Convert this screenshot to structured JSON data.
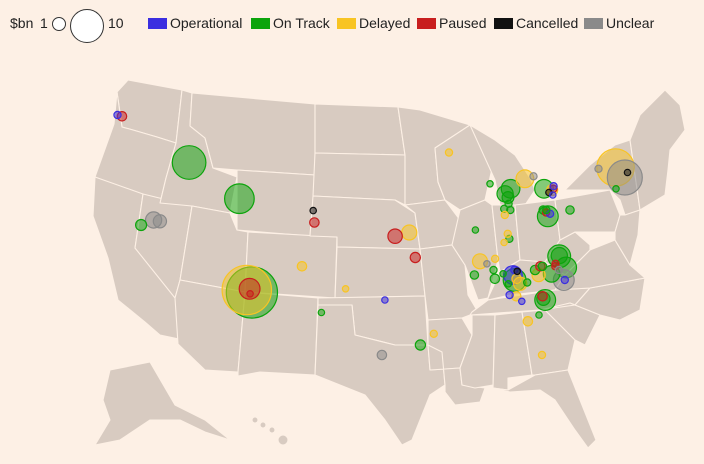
{
  "legend": {
    "unit_label": "$bn",
    "size_min": "1",
    "size_max": "10",
    "statuses": [
      {
        "key": "operational",
        "label": "Operational",
        "color": "#3a2ee0"
      },
      {
        "key": "on_track",
        "label": "On Track",
        "color": "#0ca40c"
      },
      {
        "key": "delayed",
        "label": "Delayed",
        "color": "#f8c423"
      },
      {
        "key": "paused",
        "label": "Paused",
        "color": "#c81e1e"
      },
      {
        "key": "cancelled",
        "label": "Cancelled",
        "color": "#111111"
      },
      {
        "key": "unclear",
        "label": "Unclear",
        "color": "#8a8a8a"
      }
    ]
  },
  "projects": [
    {
      "lon": -122.4,
      "lat": 47.4,
      "status": "operational",
      "value": 0.3
    },
    {
      "lon": -122.0,
      "lat": 47.3,
      "status": "paused",
      "value": 0.5
    },
    {
      "lon": -116.4,
      "lat": 43.6,
      "status": "on_track",
      "value": 6.5
    },
    {
      "lon": -121.9,
      "lat": 38.6,
      "status": "on_track",
      "value": 0.7
    },
    {
      "lon": -120.6,
      "lat": 39.0,
      "status": "unclear",
      "value": 1.5
    },
    {
      "lon": -120.0,
      "lat": 38.9,
      "status": "unclear",
      "value": 1.0
    },
    {
      "lon": -112.0,
      "lat": 40.7,
      "status": "on_track",
      "value": 5.0
    },
    {
      "lon": -112.2,
      "lat": 33.4,
      "status": "delayed",
      "value": 14.0
    },
    {
      "lon": -111.7,
      "lat": 33.2,
      "status": "on_track",
      "value": 15.0
    },
    {
      "lon": -111.9,
      "lat": 33.5,
      "status": "paused",
      "value": 2.5
    },
    {
      "lon": -111.9,
      "lat": 33.1,
      "status": "paused",
      "value": 0.15
    },
    {
      "lon": -106.4,
      "lat": 35.3,
      "status": "delayed",
      "value": 0.5
    },
    {
      "lon": -104.95,
      "lat": 39.75,
      "status": "cancelled",
      "value": 0.2
    },
    {
      "lon": -104.9,
      "lat": 38.8,
      "status": "paused",
      "value": 0.5
    },
    {
      "lon": -104.7,
      "lat": 31.6,
      "status": "on_track",
      "value": 0.2
    },
    {
      "lon": -102.1,
      "lat": 33.5,
      "status": "delayed",
      "value": 0.2
    },
    {
      "lon": -98.1,
      "lat": 32.6,
      "status": "operational",
      "value": 0.2
    },
    {
      "lon": -98.5,
      "lat": 28.2,
      "status": "unclear",
      "value": 0.5
    },
    {
      "lon": -94.4,
      "lat": 29.0,
      "status": "on_track",
      "value": 0.6
    },
    {
      "lon": -93.0,
      "lat": 29.9,
      "status": "delayed",
      "value": 0.3
    },
    {
      "lon": -97.0,
      "lat": 37.7,
      "status": "paused",
      "value": 1.2
    },
    {
      "lon": -95.6,
      "lat": 38.0,
      "status": "delayed",
      "value": 1.3
    },
    {
      "lon": -95.0,
      "lat": 36.0,
      "status": "paused",
      "value": 0.6
    },
    {
      "lon": -91.9,
      "lat": 44.4,
      "status": "delayed",
      "value": 0.3
    },
    {
      "lon": -87.9,
      "lat": 41.9,
      "status": "on_track",
      "value": 0.2
    },
    {
      "lon": -86.4,
      "lat": 41.1,
      "status": "on_track",
      "value": 1.5
    },
    {
      "lon": -85.9,
      "lat": 41.5,
      "status": "on_track",
      "value": 2.0
    },
    {
      "lon": -86.1,
      "lat": 40.8,
      "status": "on_track",
      "value": 0.8
    },
    {
      "lon": -86.4,
      "lat": 39.9,
      "status": "on_track",
      "value": 0.3
    },
    {
      "lon": -86.0,
      "lat": 40.3,
      "status": "on_track",
      "value": 0.3
    },
    {
      "lon": -85.8,
      "lat": 39.8,
      "status": "on_track",
      "value": 0.3
    },
    {
      "lon": -86.3,
      "lat": 39.4,
      "status": "delayed",
      "value": 0.3
    },
    {
      "lon": -84.6,
      "lat": 42.3,
      "status": "delayed",
      "value": 1.8
    },
    {
      "lon": -83.8,
      "lat": 42.5,
      "status": "unclear",
      "value": 0.3
    },
    {
      "lon": -82.7,
      "lat": 41.5,
      "status": "on_track",
      "value": 2.0
    },
    {
      "lon": -81.9,
      "lat": 41.4,
      "status": "delayed",
      "value": 0.7
    },
    {
      "lon": -81.8,
      "lat": 41.5,
      "status": "paused",
      "value": 0.3
    },
    {
      "lon": -81.8,
      "lat": 41.7,
      "status": "operational",
      "value": 0.3
    },
    {
      "lon": -82.2,
      "lat": 41.2,
      "status": "cancelled",
      "value": 0.2
    },
    {
      "lon": -81.8,
      "lat": 41.0,
      "status": "operational",
      "value": 0.2
    },
    {
      "lon": -82.1,
      "lat": 39.3,
      "status": "on_track",
      "value": 2.5
    },
    {
      "lon": -82.6,
      "lat": 39.8,
      "status": "on_track",
      "value": 0.4
    },
    {
      "lon": -82.3,
      "lat": 39.6,
      "status": "paused",
      "value": 0.3
    },
    {
      "lon": -81.9,
      "lat": 39.5,
      "status": "operational",
      "value": 0.3
    },
    {
      "lon": -82.3,
      "lat": 39.8,
      "status": "on_track",
      "value": 0.3
    },
    {
      "lon": -80.0,
      "lat": 39.8,
      "status": "on_track",
      "value": 0.4
    },
    {
      "lon": -76.1,
      "lat": 43.2,
      "status": "delayed",
      "value": 8.0
    },
    {
      "lon": -75.1,
      "lat": 42.4,
      "status": "unclear",
      "value": 7.0
    },
    {
      "lon": -74.9,
      "lat": 42.8,
      "status": "cancelled",
      "value": 0.2
    },
    {
      "lon": -77.7,
      "lat": 43.1,
      "status": "unclear",
      "value": 0.3
    },
    {
      "lon": -75.8,
      "lat": 41.5,
      "status": "on_track",
      "value": 0.2
    },
    {
      "lon": -89.1,
      "lat": 38.2,
      "status": "on_track",
      "value": 0.2
    },
    {
      "lon": -86.2,
      "lat": 37.2,
      "status": "delayed",
      "value": 0.2
    },
    {
      "lon": -85.7,
      "lat": 37.5,
      "status": "on_track",
      "value": 0.3
    },
    {
      "lon": -85.9,
      "lat": 37.9,
      "status": "delayed",
      "value": 0.3
    },
    {
      "lon": -88.5,
      "lat": 35.7,
      "status": "delayed",
      "value": 1.3
    },
    {
      "lon": -87.8,
      "lat": 35.5,
      "status": "unclear",
      "value": 0.2
    },
    {
      "lon": -87.0,
      "lat": 35.9,
      "status": "delayed",
      "value": 0.3
    },
    {
      "lon": -89.0,
      "lat": 34.6,
      "status": "on_track",
      "value": 0.4
    },
    {
      "lon": -87.1,
      "lat": 35.0,
      "status": "on_track",
      "value": 0.3
    },
    {
      "lon": -86.9,
      "lat": 34.3,
      "status": "on_track",
      "value": 0.5
    },
    {
      "lon": -86.1,
      "lat": 34.7,
      "status": "on_track",
      "value": 0.2
    },
    {
      "lon": -85.1,
      "lat": 34.6,
      "status": "operational",
      "value": 2.0
    },
    {
      "lon": -84.9,
      "lat": 34.2,
      "status": "on_track",
      "value": 3.0
    },
    {
      "lon": -84.7,
      "lat": 34.3,
      "status": "delayed",
      "value": 0.5
    },
    {
      "lon": -84.7,
      "lat": 34.9,
      "status": "cancelled",
      "value": 0.2
    },
    {
      "lon": -85.0,
      "lat": 35.0,
      "status": "operational",
      "value": 0.3
    },
    {
      "lon": -84.3,
      "lat": 33.9,
      "status": "delayed",
      "value": 1.0
    },
    {
      "lon": -84.6,
      "lat": 32.9,
      "status": "delayed",
      "value": 0.5
    },
    {
      "lon": -85.3,
      "lat": 33.0,
      "status": "operational",
      "value": 0.3
    },
    {
      "lon": -85.5,
      "lat": 33.9,
      "status": "on_track",
      "value": 0.2
    },
    {
      "lon": -83.6,
      "lat": 34.0,
      "status": "on_track",
      "value": 0.3
    },
    {
      "lon": -82.9,
      "lat": 35.0,
      "status": "on_track",
      "value": 0.5
    },
    {
      "lon": -82.5,
      "lat": 34.6,
      "status": "delayed",
      "value": 1.0
    },
    {
      "lon": -82.4,
      "lat": 35.3,
      "status": "paused",
      "value": 0.5
    },
    {
      "lon": -82.2,
      "lat": 35.3,
      "status": "on_track",
      "value": 0.4
    },
    {
      "lon": -81.2,
      "lat": 34.7,
      "status": "on_track",
      "value": 1.6
    },
    {
      "lon": -80.9,
      "lat": 35.3,
      "status": "paused",
      "value": 0.3
    },
    {
      "lon": -80.9,
      "lat": 35.5,
      "status": "paused",
      "value": 0.3
    },
    {
      "lon": -80.5,
      "lat": 35.0,
      "status": "unclear",
      "value": 0.3
    },
    {
      "lon": -80.6,
      "lat": 36.1,
      "status": "on_track",
      "value": 3.0
    },
    {
      "lon": -80.6,
      "lat": 36.15,
      "status": "on_track",
      "value": 1.5
    },
    {
      "lon": -79.8,
      "lat": 35.2,
      "status": "on_track",
      "value": 2.5
    },
    {
      "lon": -79.9,
      "lat": 34.2,
      "status": "unclear",
      "value": 2.5
    },
    {
      "lon": -79.8,
      "lat": 34.2,
      "status": "operational",
      "value": 0.3
    },
    {
      "lon": -81.6,
      "lat": 32.6,
      "status": "on_track",
      "value": 2.5
    },
    {
      "lon": -81.8,
      "lat": 32.7,
      "status": "on_track",
      "value": 1.0
    },
    {
      "lon": -81.9,
      "lat": 32.9,
      "status": "paused",
      "value": 0.5
    },
    {
      "lon": -82.1,
      "lat": 31.4,
      "status": "on_track",
      "value": 0.2
    },
    {
      "lon": -83.2,
      "lat": 30.9,
      "status": "delayed",
      "value": 0.5
    },
    {
      "lon": -84.0,
      "lat": 32.5,
      "status": "operational",
      "value": 0.2
    },
    {
      "lon": -81.4,
      "lat": 28.2,
      "status": "delayed",
      "value": 0.3
    }
  ]
}
